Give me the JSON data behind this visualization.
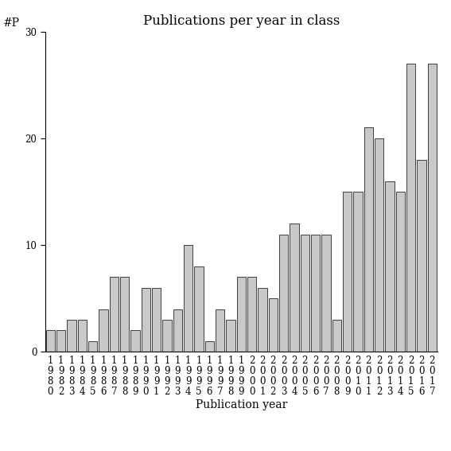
{
  "title": "Publications per year in class",
  "xlabel": "Publication year",
  "ylabel": "#P",
  "bar_color": "#c8c8c8",
  "edge_color": "#000000",
  "years": [
    1980,
    1982,
    1983,
    1984,
    1985,
    1986,
    1987,
    1988,
    1989,
    1990,
    1991,
    1992,
    1993,
    1994,
    1995,
    1996,
    1997,
    1998,
    1999,
    2000,
    2001,
    2002,
    2003,
    2004,
    2005,
    2006,
    2007,
    2008,
    2009,
    2010,
    2011,
    2012,
    2013,
    2014,
    2015,
    2016,
    2017
  ],
  "values": [
    2,
    2,
    3,
    3,
    1,
    4,
    7,
    7,
    2,
    6,
    6,
    3,
    4,
    10,
    8,
    1,
    4,
    3,
    7,
    7,
    6,
    5,
    11,
    12,
    11,
    11,
    11,
    3,
    15,
    15,
    21,
    20,
    16,
    15,
    27,
    18,
    27
  ],
  "ylim": [
    0,
    30
  ],
  "yticks": [
    0,
    10,
    20,
    30
  ],
  "background_color": "#ffffff",
  "title_fontsize": 12,
  "label_fontsize": 10,
  "tick_fontsize": 8.5
}
